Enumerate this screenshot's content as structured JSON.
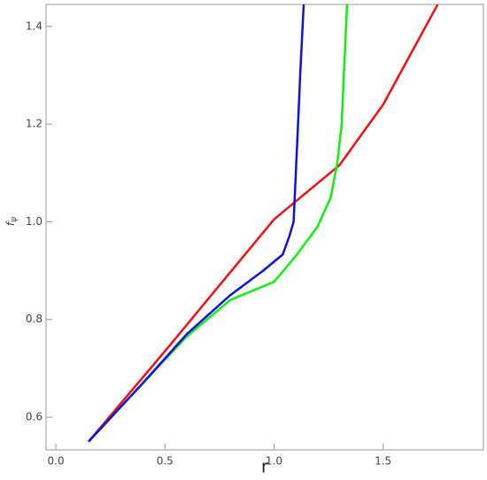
{
  "chart_data": {
    "type": "line",
    "xlabel": "r",
    "ylabel": {
      "main": "f",
      "sub": "ψ"
    },
    "xlim": [
      -0.045,
      1.96
    ],
    "ylim": [
      0.533,
      1.445
    ],
    "xticks": [
      {
        "value": 0,
        "label": "0.0"
      },
      0.5,
      {
        "value": 1,
        "label": "1.0"
      },
      1.5
    ],
    "yticks": [
      0.6,
      0.8,
      {
        "value": 1,
        "label": "1.0"
      },
      1.2,
      1.4
    ],
    "series": [
      {
        "color": "#ee1111",
        "x": [
          0.15,
          0.5,
          0.75,
          1.0,
          1.3,
          1.5,
          1.75
        ],
        "values": [
          0.55,
          0.735,
          0.87,
          1.005,
          1.116,
          1.24,
          1.445
        ]
      },
      {
        "color": "#11ee11",
        "x": [
          0.15,
          0.4,
          0.6,
          0.8,
          1.0,
          1.1,
          1.2,
          1.26,
          1.29,
          1.31,
          1.32,
          1.335
        ],
        "values": [
          0.55,
          0.67,
          0.765,
          0.84,
          0.877,
          0.93,
          0.99,
          1.05,
          1.12,
          1.2,
          1.3,
          1.445
        ]
      },
      {
        "color": "#1111dd",
        "x": [
          0.15,
          0.4,
          0.6,
          0.8,
          0.95,
          1.04,
          1.07,
          1.09,
          1.1,
          1.11,
          1.12,
          1.136
        ],
        "values": [
          0.55,
          0.67,
          0.77,
          0.85,
          0.9,
          0.933,
          0.97,
          1.0,
          1.1,
          1.2,
          1.3,
          1.445
        ]
      }
    ]
  }
}
